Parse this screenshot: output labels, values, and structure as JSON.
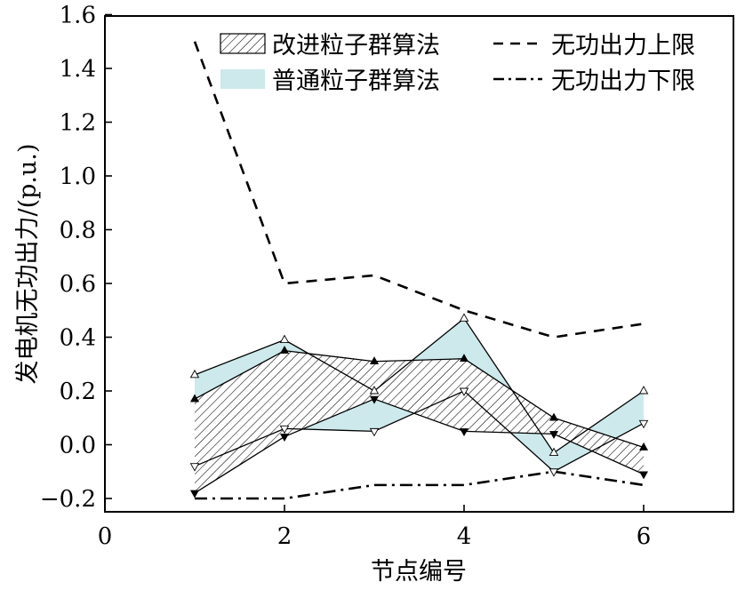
{
  "chart_data": {
    "type": "area",
    "xlabel": "节点编号",
    "ylabel": "发电机无功出力/(p.u.)",
    "xlim": [
      0,
      7
    ],
    "ylim": [
      -0.25,
      1.6
    ],
    "x_ticks": [
      0,
      2,
      4,
      6
    ],
    "x_tick_labels": [
      "0",
      "2",
      "4",
      "6"
    ],
    "y_ticks": [
      -0.2,
      0.0,
      0.2,
      0.4,
      0.6,
      0.8,
      1.0,
      1.2,
      1.4,
      1.6
    ],
    "y_tick_labels": [
      "−0.2",
      "0.0",
      "0.2",
      "0.4",
      "0.6",
      "0.8",
      "1.0",
      "1.2",
      "1.4",
      "1.6"
    ],
    "grid": false,
    "legend_position": "top",
    "x": [
      1,
      2,
      3,
      4,
      5,
      6
    ],
    "series": [
      {
        "name": "改进粒子群算法",
        "style": "hatched-band",
        "color": "#000000",
        "upper": [
          0.17,
          0.35,
          0.31,
          0.32,
          0.1,
          -0.01
        ],
        "lower": [
          -0.18,
          0.03,
          0.17,
          0.05,
          0.04,
          -0.11
        ]
      },
      {
        "name": "普通粒子群算法",
        "style": "filled-band",
        "color": "#cde9ec",
        "upper": [
          0.26,
          0.39,
          0.2,
          0.47,
          -0.03,
          0.2
        ],
        "lower": [
          -0.08,
          0.06,
          0.05,
          0.2,
          -0.1,
          0.08
        ]
      },
      {
        "name": "无功出力上限",
        "style": "dashed-line",
        "color": "#000000",
        "values": [
          1.5,
          0.6,
          0.63,
          0.5,
          0.4,
          0.45
        ]
      },
      {
        "name": "无功出力下限",
        "style": "dashdot-line",
        "color": "#000000",
        "values": [
          -0.2,
          -0.2,
          -0.15,
          -0.15,
          -0.1,
          -0.15
        ]
      }
    ]
  }
}
